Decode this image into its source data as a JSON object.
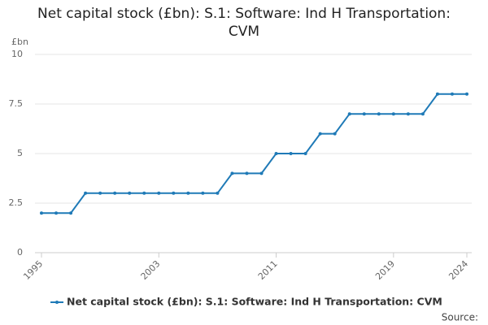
{
  "chart_data": {
    "type": "line",
    "title": "Net capital stock (£bn): S.1: Software: Ind H Transportation: CVM",
    "y_label": "£bn",
    "source": "Source:",
    "x": [
      1995,
      1996,
      1997,
      1998,
      1999,
      2000,
      2001,
      2002,
      2003,
      2004,
      2005,
      2006,
      2007,
      2008,
      2009,
      2010,
      2011,
      2012,
      2013,
      2014,
      2015,
      2016,
      2017,
      2018,
      2019,
      2020,
      2021,
      2022,
      2023,
      2024
    ],
    "series": [
      {
        "name": "Net capital stock (£bn): S.1: Software: Ind H Transportation: CVM",
        "color": "#1f7ab7",
        "values": [
          2,
          2,
          2,
          3,
          3,
          3,
          3,
          3,
          3,
          3,
          3,
          3,
          3,
          4,
          4,
          4,
          5,
          5,
          5,
          6,
          6,
          7,
          7,
          7,
          7,
          7,
          7,
          8,
          8,
          8
        ]
      }
    ],
    "xlim": [
      1995,
      2024
    ],
    "xticks": [
      1995,
      2003,
      2011,
      2019,
      2024
    ],
    "ylim": [
      0,
      10
    ],
    "yticks": [
      0,
      2.5,
      5,
      7.5,
      10
    ],
    "grid": true
  }
}
